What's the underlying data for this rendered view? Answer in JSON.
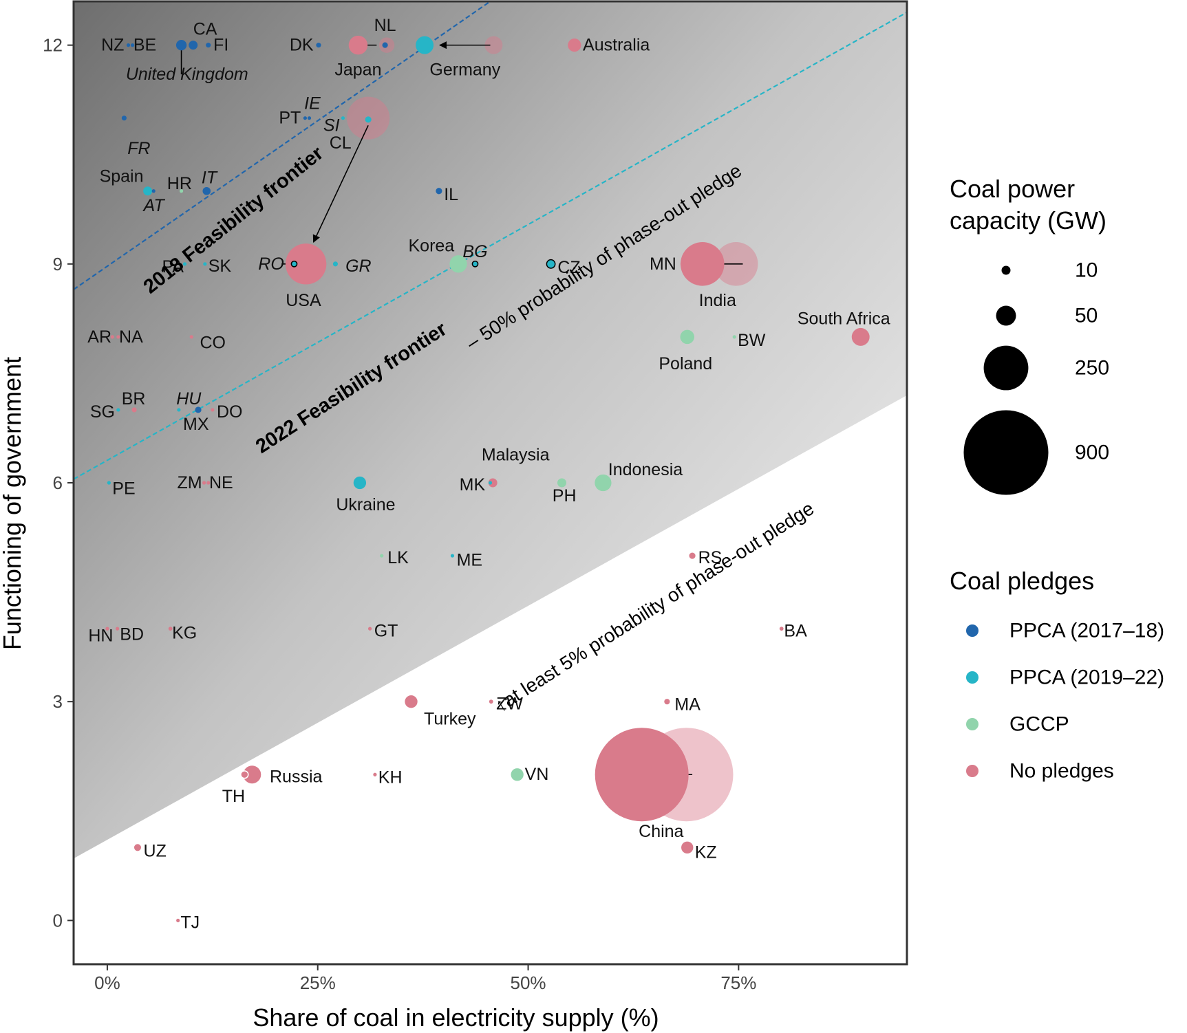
{
  "chart_data": {
    "type": "scatter",
    "xlabel": "Share of coal in electricity supply (%)",
    "ylabel": "Functioning of government",
    "xlim": [
      -4,
      95
    ],
    "ylim": [
      -0.6,
      12.6
    ],
    "x_ticks": [
      {
        "value": 0,
        "label": "0%"
      },
      {
        "value": 25,
        "label": "25%"
      },
      {
        "value": 50,
        "label": "50%"
      },
      {
        "value": 75,
        "label": "75%"
      }
    ],
    "y_ticks": [
      {
        "value": 0,
        "label": "0"
      },
      {
        "value": 3,
        "label": "3"
      },
      {
        "value": 6,
        "label": "6"
      },
      {
        "value": 9,
        "label": "9"
      },
      {
        "value": 12,
        "label": "12"
      }
    ],
    "colors": {
      "PPCA (2017–18)": "#2166ac",
      "PPCA (2019–22)": "#26b5c7",
      "GCCP": "#91d4ac",
      "No pledges": "#d97b8b"
    },
    "frontiers": [
      {
        "x1": -4,
        "y1": 8.65,
        "x2": 45.5,
        "y2": 12.6,
        "color": "#2166ac"
      },
      {
        "x1": -4,
        "y1": 6.05,
        "x2": 95,
        "y2": 12.45,
        "color": "#26b5c7"
      }
    ],
    "probability_boundary": {
      "x1": -4,
      "y1": 0.85,
      "x2": 95,
      "y2": 7.2
    },
    "annotations": [
      {
        "text": "2018 Feasibility frontier",
        "x": 15,
        "y": 9.6,
        "angle": -38.5,
        "size": 29,
        "weight": "bold"
      },
      {
        "text": "2022 Feasibility frontier",
        "x": 29,
        "y": 7.3,
        "angle": -33,
        "size": 29,
        "weight": "bold"
      },
      {
        "text": "– 50% probability of phase-out pledge",
        "x": 59,
        "y": 9.1,
        "angle": -33,
        "size": 28,
        "weight": "normal"
      },
      {
        "text": "↑at least 5% probability of phase-out pledge",
        "x": 65,
        "y": 4.3,
        "angle": -32.5,
        "size": 28,
        "weight": "normal"
      }
    ],
    "size_legend": {
      "title": [
        "Coal power",
        "capacity (GW)"
      ],
      "entries": [
        {
          "label": "10",
          "capacity": 10
        },
        {
          "label": "50",
          "capacity": 50
        },
        {
          "label": "250",
          "capacity": 250
        },
        {
          "label": "900",
          "capacity": 900
        }
      ]
    },
    "color_legend": {
      "title": "Coal pledges",
      "entries": [
        "PPCA (2017–18)",
        "PPCA (2019–22)",
        "GCCP",
        "No pledges"
      ]
    },
    "movements": [
      {
        "x1": 32.0,
        "y1": 12.0,
        "x2": 29.5,
        "y2": 12.0,
        "arrow": true
      },
      {
        "x1": 45.5,
        "y1": 12.0,
        "x2": 39.5,
        "y2": 12.0,
        "arrow": true
      },
      {
        "x1": 31.0,
        "y1": 10.9,
        "x2": 24.5,
        "y2": 9.3,
        "arrow": true
      },
      {
        "x1": 75.5,
        "y1": 9.0,
        "x2": 71.0,
        "y2": 9.0,
        "arrow": true
      },
      {
        "x1": 69.5,
        "y1": 2.0,
        "x2": 65.5,
        "y2": 2.0,
        "arrow": true
      },
      {
        "x1": 21.5,
        "y1": 9.0,
        "x2": 20.7,
        "y2": 9.0,
        "arrow": false
      },
      {
        "x1": 8.8,
        "y1": 12.0,
        "x2": 8.8,
        "y2": 11.6,
        "arrow": false
      }
    ],
    "ghost_points": [
      {
        "x": 33.2,
        "y": 12.0,
        "capacity": 30,
        "group": "No pledges"
      },
      {
        "x": 45.9,
        "y": 12.0,
        "capacity": 40,
        "group": "No pledges"
      },
      {
        "x": 31.0,
        "y": 11.0,
        "capacity": 230,
        "group": "No pledges"
      },
      {
        "x": 74.7,
        "y": 9.0,
        "capacity": 240,
        "group": "No pledges"
      },
      {
        "x": 68.8,
        "y": 2.0,
        "capacity": 1100,
        "group": "No pledges"
      }
    ],
    "points": [
      {
        "label": "NZ",
        "x": 2.5,
        "y": 12.0,
        "capacity": 1,
        "group": "PPCA (2017–18)",
        "lx": 2.0,
        "ly": 12.0,
        "anchor": "end",
        "italic": false
      },
      {
        "label": "BE",
        "x": 3.0,
        "y": 12.0,
        "capacity": 1,
        "group": "PPCA (2017–18)",
        "lx": 3.1,
        "ly": 12.0,
        "anchor": "start",
        "italic": false
      },
      {
        "label": "United Kingdom",
        "x": 8.8,
        "y": 12.0,
        "capacity": 14,
        "group": "PPCA (2017–18)",
        "lx": 2.2,
        "ly": 11.6,
        "anchor": "start",
        "italic": true
      },
      {
        "label": "CA",
        "x": 10.2,
        "y": 12.0,
        "capacity": 10,
        "group": "PPCA (2017–18)",
        "lx": 10.2,
        "ly": 12.22,
        "anchor": "start",
        "italic": false
      },
      {
        "label": "FI",
        "x": 12.0,
        "y": 12.0,
        "capacity": 3,
        "group": "PPCA (2017–18)",
        "lx": 12.6,
        "ly": 12.0,
        "anchor": "start",
        "italic": false
      },
      {
        "label": "DK",
        "x": 25.1,
        "y": 12.0,
        "capacity": 3,
        "group": "PPCA (2017–18)",
        "lx": 24.5,
        "ly": 12.0,
        "anchor": "end",
        "italic": false
      },
      {
        "label": "Japan",
        "x": 29.8,
        "y": 12.0,
        "capacity": 45,
        "group": "No pledges",
        "lx": 29.8,
        "ly": 11.66,
        "anchor": "middle",
        "italic": false
      },
      {
        "label": "NL",
        "x": 33.0,
        "y": 12.0,
        "capacity": 4,
        "group": "PPCA (2017–18)",
        "lx": 33.0,
        "ly": 12.27,
        "anchor": "middle",
        "italic": false
      },
      {
        "label": "Germany",
        "x": 37.7,
        "y": 12.0,
        "capacity": 40,
        "group": "PPCA (2019–22)",
        "lx": 42.5,
        "ly": 11.66,
        "anchor": "middle",
        "italic": false
      },
      {
        "label": "Australia",
        "x": 55.5,
        "y": 12.0,
        "capacity": 22,
        "group": "No pledges",
        "lx": 56.5,
        "ly": 12.0,
        "anchor": "start",
        "italic": false
      },
      {
        "label": "FR",
        "x": 2.0,
        "y": 11.0,
        "capacity": 3,
        "group": "PPCA (2017–18)",
        "lx": 2.4,
        "ly": 10.58,
        "anchor": "start",
        "italic": true
      },
      {
        "label": "PT",
        "x": 23.5,
        "y": 11.0,
        "capacity": 1,
        "group": "PPCA (2017–18)",
        "lx": 23.0,
        "ly": 11.0,
        "anchor": "end",
        "italic": false
      },
      {
        "label": "IE",
        "x": 24.0,
        "y": 11.0,
        "capacity": 1,
        "group": "PPCA (2017–18)",
        "lx": 23.4,
        "ly": 11.2,
        "anchor": "start",
        "italic": true
      },
      {
        "label": "SI",
        "x": 28.0,
        "y": 11.0,
        "capacity": 1,
        "group": "PPCA (2019–22)",
        "lx": 27.6,
        "ly": 10.9,
        "anchor": "end",
        "italic": true
      },
      {
        "label": "CL",
        "x": 31.0,
        "y": 10.98,
        "capacity": 5,
        "group": "PPCA (2019–22)",
        "lx": 29.0,
        "ly": 10.66,
        "anchor": "end",
        "italic": false
      },
      {
        "label": "Spain",
        "x": 4.8,
        "y": 10.0,
        "capacity": 10,
        "group": "PPCA (2019–22)",
        "lx": 4.3,
        "ly": 10.2,
        "anchor": "end",
        "italic": false
      },
      {
        "label": "AT",
        "x": 5.5,
        "y": 10.0,
        "capacity": 1,
        "group": "PPCA (2017–18)",
        "lx": 4.3,
        "ly": 9.8,
        "anchor": "start",
        "italic": true
      },
      {
        "label": "HR",
        "x": 8.8,
        "y": 10.0,
        "capacity": 1,
        "group": "GCCP",
        "lx": 7.1,
        "ly": 10.1,
        "anchor": "start",
        "italic": false
      },
      {
        "label": "IT",
        "x": 11.8,
        "y": 10.0,
        "capacity": 8,
        "group": "PPCA (2017–18)",
        "lx": 11.2,
        "ly": 10.18,
        "anchor": "start",
        "italic": true
      },
      {
        "label": "IL",
        "x": 39.4,
        "y": 10.0,
        "capacity": 5,
        "group": "PPCA (2017–18)",
        "lx": 40.0,
        "ly": 9.95,
        "anchor": "start",
        "italic": false
      },
      {
        "label": "PA",
        "x": 9.2,
        "y": 9.0,
        "capacity": 1,
        "group": "PPCA (2019–22)",
        "lx": 6.5,
        "ly": 8.96,
        "anchor": "start",
        "italic": false
      },
      {
        "label": "SK",
        "x": 11.6,
        "y": 9.0,
        "capacity": 1,
        "group": "PPCA (2019–22)",
        "lx": 12.0,
        "ly": 8.97,
        "anchor": "start",
        "italic": false
      },
      {
        "label": "RO",
        "x": 22.2,
        "y": 9.0,
        "capacity": 4,
        "group": "PPCA (2019–22)",
        "lx": 21.0,
        "ly": 9.0,
        "anchor": "end",
        "italic": true
      },
      {
        "label": "USA",
        "x": 23.6,
        "y": 9.0,
        "capacity": 210,
        "group": "No pledges",
        "lx": 23.3,
        "ly": 8.5,
        "anchor": "middle",
        "italic": false
      },
      {
        "label": "GR",
        "x": 27.1,
        "y": 9.0,
        "capacity": 3,
        "group": "PPCA (2019–22)",
        "lx": 28.3,
        "ly": 8.97,
        "anchor": "start",
        "italic": true
      },
      {
        "label": "Korea",
        "x": 41.7,
        "y": 9.0,
        "capacity": 38,
        "group": "GCCP",
        "lx": 38.5,
        "ly": 9.25,
        "anchor": "middle",
        "italic": false
      },
      {
        "label": "BG",
        "x": 43.7,
        "y": 9.0,
        "capacity": 4,
        "group": "PPCA (2019–22)",
        "lx": 43.7,
        "ly": 9.17,
        "anchor": "middle",
        "italic": true
      },
      {
        "label": "CZ",
        "x": 52.7,
        "y": 9.0,
        "capacity": 9,
        "group": "PPCA (2019–22)",
        "lx": 53.5,
        "ly": 8.95,
        "anchor": "start",
        "italic": false
      },
      {
        "label": "MN",
        "x": 68.3,
        "y": 9.0,
        "capacity": 1,
        "group": "No pledges",
        "lx": 67.6,
        "ly": 9.0,
        "anchor": "end",
        "italic": false
      },
      {
        "label": "India",
        "x": 70.7,
        "y": 9.0,
        "capacity": 240,
        "group": "No pledges",
        "lx": 72.5,
        "ly": 8.5,
        "anchor": "middle",
        "italic": false
      },
      {
        "label": "AR",
        "x": 0.6,
        "y": 8.0,
        "capacity": 1,
        "group": "No pledges",
        "lx": 0.5,
        "ly": 8.0,
        "anchor": "end",
        "italic": false
      },
      {
        "label": "NA",
        "x": 1.3,
        "y": 8.0,
        "capacity": 1,
        "group": "No pledges",
        "lx": 1.4,
        "ly": 8.0,
        "anchor": "start",
        "italic": false
      },
      {
        "label": "CO",
        "x": 10.0,
        "y": 8.0,
        "capacity": 1,
        "group": "No pledges",
        "lx": 11.0,
        "ly": 7.92,
        "anchor": "start",
        "italic": false
      },
      {
        "label": "Poland",
        "x": 68.9,
        "y": 8.0,
        "capacity": 25,
        "group": "GCCP",
        "lx": 68.7,
        "ly": 7.63,
        "anchor": "middle",
        "italic": false
      },
      {
        "label": "BW",
        "x": 74.5,
        "y": 8.0,
        "capacity": 1,
        "group": "GCCP",
        "lx": 74.9,
        "ly": 7.95,
        "anchor": "start",
        "italic": false
      },
      {
        "label": "South Africa",
        "x": 89.5,
        "y": 8.0,
        "capacity": 40,
        "group": "No pledges",
        "lx": 87.5,
        "ly": 8.25,
        "anchor": "middle",
        "italic": false
      },
      {
        "label": "SG",
        "x": 1.3,
        "y": 7.0,
        "capacity": 1,
        "group": "PPCA (2019–22)",
        "lx": 0.9,
        "ly": 6.97,
        "anchor": "end",
        "italic": false
      },
      {
        "label": "BR",
        "x": 3.2,
        "y": 7.0,
        "capacity": 3,
        "group": "No pledges",
        "lx": 1.7,
        "ly": 7.15,
        "anchor": "start",
        "italic": false
      },
      {
        "label": "HU",
        "x": 8.5,
        "y": 7.0,
        "capacity": 1,
        "group": "PPCA (2019–22)",
        "lx": 8.2,
        "ly": 7.15,
        "anchor": "start",
        "italic": true
      },
      {
        "label": "MX",
        "x": 10.8,
        "y": 7.0,
        "capacity": 5,
        "group": "PPCA (2017–18)",
        "lx": 9.0,
        "ly": 6.8,
        "anchor": "start",
        "italic": false
      },
      {
        "label": "DO",
        "x": 12.5,
        "y": 7.0,
        "capacity": 1,
        "group": "No pledges",
        "lx": 13.0,
        "ly": 6.97,
        "anchor": "start",
        "italic": false
      },
      {
        "label": "PE",
        "x": 0.2,
        "y": 6.0,
        "capacity": 1,
        "group": "PPCA (2019–22)",
        "lx": 0.6,
        "ly": 5.92,
        "anchor": "start",
        "italic": false
      },
      {
        "label": "ZM",
        "x": 11.5,
        "y": 6.0,
        "capacity": 1,
        "group": "No pledges",
        "lx": 8.3,
        "ly": 6.0,
        "anchor": "start",
        "italic": false
      },
      {
        "label": "NE",
        "x": 12.0,
        "y": 6.0,
        "capacity": 1,
        "group": "No pledges",
        "lx": 12.1,
        "ly": 6.0,
        "anchor": "start",
        "italic": false
      },
      {
        "label": "Ukraine",
        "x": 30.0,
        "y": 6.0,
        "capacity": 20,
        "group": "PPCA (2019–22)",
        "lx": 30.7,
        "ly": 5.7,
        "anchor": "middle",
        "italic": false
      },
      {
        "label": "Malaysia",
        "x": 45.8,
        "y": 6.0,
        "capacity": 10,
        "group": "No pledges",
        "lx": 48.5,
        "ly": 6.38,
        "anchor": "middle",
        "italic": false
      },
      {
        "label": "MK",
        "x": 45.5,
        "y": 6.0,
        "capacity": 1,
        "group": "PPCA (2019–22)",
        "lx": 44.9,
        "ly": 5.97,
        "anchor": "end",
        "italic": false
      },
      {
        "label": "PH",
        "x": 54.0,
        "y": 6.0,
        "capacity": 10,
        "group": "GCCP",
        "lx": 54.3,
        "ly": 5.82,
        "anchor": "middle",
        "italic": false
      },
      {
        "label": "Indonesia",
        "x": 58.9,
        "y": 6.0,
        "capacity": 35,
        "group": "GCCP",
        "lx": 59.5,
        "ly": 6.18,
        "anchor": "start",
        "italic": false
      },
      {
        "label": "LK",
        "x": 32.6,
        "y": 5.0,
        "capacity": 1,
        "group": "GCCP",
        "lx": 33.3,
        "ly": 4.97,
        "anchor": "start",
        "italic": false
      },
      {
        "label": "ME",
        "x": 41.0,
        "y": 5.0,
        "capacity": 1,
        "group": "PPCA (2019–22)",
        "lx": 41.5,
        "ly": 4.94,
        "anchor": "start",
        "italic": false
      },
      {
        "label": "RS",
        "x": 69.5,
        "y": 5.0,
        "capacity": 5,
        "group": "No pledges",
        "lx": 70.2,
        "ly": 4.97,
        "anchor": "start",
        "italic": false
      },
      {
        "label": "HN",
        "x": 0.0,
        "y": 4.0,
        "capacity": 1,
        "group": "No pledges",
        "lx": 0.7,
        "ly": 3.9,
        "anchor": "end",
        "italic": false
      },
      {
        "label": "BD",
        "x": 1.2,
        "y": 4.0,
        "capacity": 1,
        "group": "No pledges",
        "lx": 1.5,
        "ly": 3.92,
        "anchor": "start",
        "italic": false
      },
      {
        "label": "KG",
        "x": 7.5,
        "y": 4.0,
        "capacity": 2,
        "group": "No pledges",
        "lx": 7.7,
        "ly": 3.94,
        "anchor": "start",
        "italic": false
      },
      {
        "label": "GT",
        "x": 31.2,
        "y": 4.0,
        "capacity": 1,
        "group": "No pledges",
        "lx": 31.7,
        "ly": 3.97,
        "anchor": "start",
        "italic": false
      },
      {
        "label": "BA",
        "x": 80.1,
        "y": 4.0,
        "capacity": 2,
        "group": "No pledges",
        "lx": 80.4,
        "ly": 3.97,
        "anchor": "start",
        "italic": false
      },
      {
        "label": "Turkey",
        "x": 36.1,
        "y": 3.0,
        "capacity": 20,
        "group": "No pledges",
        "lx": 40.7,
        "ly": 2.76,
        "anchor": "middle",
        "italic": false
      },
      {
        "label": "ZW",
        "x": 45.6,
        "y": 3.0,
        "capacity": 2,
        "group": "No pledges",
        "lx": 46.2,
        "ly": 2.97,
        "anchor": "start",
        "italic": false
      },
      {
        "label": "MA",
        "x": 66.5,
        "y": 3.0,
        "capacity": 4,
        "group": "No pledges",
        "lx": 67.4,
        "ly": 2.96,
        "anchor": "start",
        "italic": false
      },
      {
        "label": "TH",
        "x": 16.3,
        "y": 2.0,
        "capacity": 7,
        "group": "No pledges",
        "lx": 15.0,
        "ly": 1.7,
        "anchor": "middle",
        "italic": false
      },
      {
        "label": "Russia",
        "x": 17.2,
        "y": 2.0,
        "capacity": 40,
        "group": "No pledges",
        "lx": 19.3,
        "ly": 1.97,
        "anchor": "start",
        "italic": false
      },
      {
        "label": "KH",
        "x": 31.8,
        "y": 2.0,
        "capacity": 1,
        "group": "No pledges",
        "lx": 32.2,
        "ly": 1.96,
        "anchor": "start",
        "italic": false
      },
      {
        "label": "VN",
        "x": 48.7,
        "y": 2.0,
        "capacity": 20,
        "group": "GCCP",
        "lx": 49.6,
        "ly": 2.0,
        "anchor": "start",
        "italic": false
      },
      {
        "label": "China",
        "x": 63.5,
        "y": 2.0,
        "capacity": 1100,
        "group": "No pledges",
        "lx": 65.8,
        "ly": 1.22,
        "anchor": "middle",
        "italic": false
      },
      {
        "label": "UZ",
        "x": 3.6,
        "y": 1.0,
        "capacity": 6,
        "group": "No pledges",
        "lx": 4.3,
        "ly": 0.95,
        "anchor": "start",
        "italic": false
      },
      {
        "label": "KZ",
        "x": 68.9,
        "y": 1.0,
        "capacity": 18,
        "group": "No pledges",
        "lx": 69.8,
        "ly": 0.93,
        "anchor": "start",
        "italic": false
      },
      {
        "label": "TJ",
        "x": 8.4,
        "y": 0.0,
        "capacity": 1,
        "group": "No pledges",
        "lx": 8.7,
        "ly": -0.03,
        "anchor": "start",
        "italic": false
      }
    ]
  }
}
